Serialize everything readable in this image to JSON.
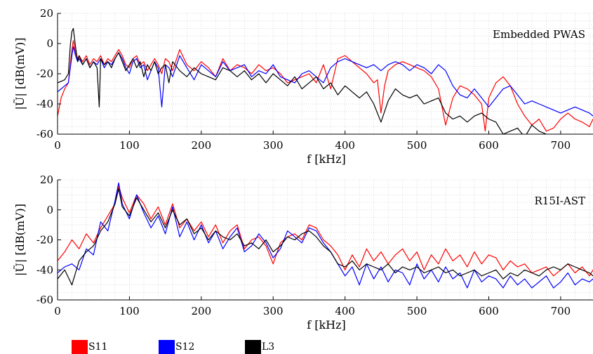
{
  "chart_data": [
    {
      "type": "line",
      "annotation": "Embedded PWAS",
      "xlabel": "f [kHz]",
      "ylabel": "|Ũ| [dB(mV)]",
      "xlim": [
        0,
        745
      ],
      "ylim": [
        -60,
        20
      ],
      "xticks": [
        0,
        100,
        200,
        300,
        400,
        500,
        600,
        700
      ],
      "yticks": [
        20,
        0,
        -20,
        -40,
        -60
      ],
      "grid": "dotted",
      "series": [
        {
          "name": "S11",
          "color": "#ff0000",
          "x": [
            0,
            5,
            10,
            15,
            20,
            22,
            25,
            28,
            30,
            35,
            40,
            45,
            50,
            55,
            60,
            65,
            70,
            75,
            80,
            85,
            90,
            95,
            100,
            105,
            110,
            115,
            120,
            125,
            130,
            135,
            140,
            145,
            150,
            155,
            160,
            170,
            180,
            190,
            200,
            210,
            220,
            230,
            240,
            250,
            260,
            270,
            280,
            290,
            300,
            310,
            320,
            330,
            340,
            350,
            360,
            370,
            380,
            390,
            400,
            410,
            420,
            430,
            440,
            445,
            450,
            455,
            460,
            470,
            480,
            490,
            500,
            510,
            520,
            530,
            540,
            550,
            560,
            570,
            580,
            590,
            595,
            600,
            610,
            620,
            630,
            640,
            650,
            660,
            670,
            680,
            690,
            700,
            710,
            720,
            730,
            740,
            745
          ],
          "y": [
            -48,
            -36,
            -30,
            -26,
            -4,
            2,
            -6,
            -10,
            -8,
            -12,
            -8,
            -14,
            -10,
            -12,
            -8,
            -14,
            -10,
            -12,
            -8,
            -4,
            -8,
            -14,
            -16,
            -10,
            -8,
            -14,
            -12,
            -18,
            -14,
            -10,
            -14,
            -20,
            -10,
            -12,
            -18,
            -4,
            -14,
            -18,
            -12,
            -16,
            -22,
            -10,
            -18,
            -14,
            -16,
            -20,
            -14,
            -18,
            -16,
            -20,
            -26,
            -24,
            -22,
            -20,
            -26,
            -14,
            -30,
            -10,
            -8,
            -12,
            -16,
            -20,
            -26,
            -24,
            -46,
            -28,
            -18,
            -14,
            -12,
            -14,
            -16,
            -18,
            -22,
            -30,
            -54,
            -36,
            -28,
            -30,
            -34,
            -40,
            -58,
            -36,
            -26,
            -22,
            -28,
            -40,
            -48,
            -54,
            -50,
            -58,
            -56,
            -50,
            -46,
            -50,
            -52,
            -55,
            -50
          ]
        },
        {
          "name": "S12",
          "color": "#0000ff",
          "x": [
            0,
            5,
            10,
            15,
            20,
            22,
            25,
            28,
            30,
            35,
            40,
            45,
            50,
            55,
            60,
            65,
            70,
            75,
            80,
            85,
            90,
            95,
            100,
            105,
            110,
            115,
            120,
            125,
            130,
            135,
            140,
            145,
            150,
            155,
            160,
            170,
            180,
            190,
            200,
            210,
            220,
            230,
            240,
            250,
            260,
            270,
            280,
            290,
            300,
            310,
            320,
            330,
            340,
            350,
            360,
            370,
            380,
            390,
            400,
            410,
            420,
            430,
            440,
            450,
            460,
            470,
            480,
            490,
            500,
            510,
            520,
            530,
            540,
            550,
            560,
            570,
            580,
            590,
            600,
            610,
            620,
            630,
            640,
            650,
            660,
            670,
            680,
            690,
            700,
            710,
            720,
            730,
            740,
            745
          ],
          "y": [
            -32,
            -30,
            -28,
            -26,
            -8,
            -2,
            -8,
            -12,
            -10,
            -14,
            -10,
            -16,
            -12,
            -14,
            -10,
            -16,
            -12,
            -14,
            -10,
            -6,
            -10,
            -16,
            -20,
            -12,
            -10,
            -16,
            -14,
            -24,
            -18,
            -12,
            -16,
            -42,
            -14,
            -16,
            -22,
            -8,
            -16,
            -24,
            -14,
            -18,
            -22,
            -12,
            -18,
            -16,
            -14,
            -22,
            -18,
            -20,
            -14,
            -22,
            -24,
            -26,
            -20,
            -18,
            -22,
            -26,
            -16,
            -12,
            -10,
            -12,
            -14,
            -16,
            -14,
            -18,
            -14,
            -12,
            -14,
            -18,
            -14,
            -16,
            -20,
            -14,
            -18,
            -28,
            -34,
            -36,
            -30,
            -36,
            -42,
            -36,
            -30,
            -28,
            -34,
            -40,
            -38,
            -40,
            -42,
            -44,
            -46,
            -44,
            -42,
            -44,
            -46,
            -48
          ]
        },
        {
          "name": "L3",
          "color": "#000000",
          "x": [
            0,
            5,
            10,
            15,
            18,
            20,
            22,
            25,
            28,
            30,
            35,
            40,
            45,
            50,
            55,
            58,
            60,
            65,
            70,
            75,
            80,
            85,
            90,
            95,
            100,
            105,
            110,
            115,
            120,
            125,
            130,
            135,
            140,
            145,
            150,
            155,
            160,
            170,
            180,
            190,
            200,
            210,
            220,
            230,
            240,
            250,
            260,
            270,
            280,
            290,
            300,
            310,
            320,
            330,
            340,
            350,
            360,
            370,
            380,
            390,
            400,
            410,
            420,
            430,
            440,
            450,
            460,
            470,
            480,
            490,
            500,
            510,
            520,
            530,
            540,
            550,
            560,
            570,
            580,
            590,
            600,
            610,
            620,
            630,
            640,
            650,
            660,
            670,
            680,
            690,
            700,
            710,
            720,
            730,
            740,
            745
          ],
          "y": [
            -26,
            -25,
            -24,
            -20,
            0,
            8,
            10,
            -2,
            -12,
            -8,
            -14,
            -10,
            -16,
            -12,
            -16,
            -42,
            -10,
            -14,
            -12,
            -16,
            -10,
            -6,
            -12,
            -18,
            -14,
            -10,
            -16,
            -12,
            -22,
            -14,
            -18,
            -12,
            -20,
            -16,
            -14,
            -26,
            -12,
            -18,
            -22,
            -16,
            -20,
            -22,
            -24,
            -16,
            -18,
            -22,
            -18,
            -24,
            -20,
            -26,
            -20,
            -24,
            -28,
            -22,
            -30,
            -26,
            -22,
            -30,
            -26,
            -34,
            -28,
            -32,
            -36,
            -32,
            -40,
            -52,
            -38,
            -30,
            -34,
            -36,
            -34,
            -40,
            -38,
            -36,
            -46,
            -50,
            -48,
            -52,
            -48,
            -46,
            -50,
            -52,
            -60,
            -58,
            -56,
            -62,
            -54,
            -58,
            -60,
            -62,
            -64,
            -60,
            -64,
            -62,
            -66,
            -64
          ]
        }
      ]
    },
    {
      "type": "line",
      "annotation": "R15I-AST",
      "xlabel": "f [kHz]",
      "ylabel": "|Ũ| [dB(mV)]",
      "xlim": [
        0,
        745
      ],
      "ylim": [
        -60,
        20
      ],
      "xticks": [
        0,
        100,
        200,
        300,
        400,
        500,
        600,
        700
      ],
      "yticks": [
        20,
        0,
        -20,
        -40,
        -60
      ],
      "grid": "dotted",
      "series": [
        {
          "name": "S11",
          "color": "#ff0000",
          "x": [
            0,
            10,
            20,
            30,
            40,
            50,
            60,
            70,
            80,
            85,
            90,
            100,
            110,
            120,
            130,
            140,
            150,
            160,
            170,
            180,
            190,
            200,
            210,
            220,
            230,
            240,
            250,
            260,
            270,
            280,
            290,
            300,
            310,
            320,
            330,
            340,
            350,
            360,
            370,
            380,
            390,
            400,
            410,
            420,
            430,
            440,
            450,
            460,
            470,
            480,
            490,
            500,
            510,
            520,
            530,
            540,
            550,
            560,
            570,
            580,
            590,
            600,
            610,
            620,
            630,
            640,
            650,
            660,
            670,
            680,
            690,
            700,
            710,
            720,
            730,
            740,
            745
          ],
          "y": [
            -34,
            -28,
            -20,
            -26,
            -16,
            -22,
            -12,
            -4,
            4,
            16,
            8,
            -2,
            10,
            4,
            -6,
            2,
            -10,
            4,
            -12,
            -6,
            -14,
            -8,
            -18,
            -10,
            -22,
            -14,
            -10,
            -26,
            -20,
            -18,
            -24,
            -36,
            -22,
            -18,
            -16,
            -20,
            -10,
            -12,
            -20,
            -24,
            -30,
            -40,
            -30,
            -38,
            -26,
            -34,
            -28,
            -36,
            -30,
            -26,
            -34,
            -28,
            -40,
            -30,
            -36,
            -26,
            -34,
            -30,
            -38,
            -28,
            -36,
            -30,
            -32,
            -40,
            -34,
            -38,
            -36,
            -42,
            -40,
            -38,
            -44,
            -40,
            -36,
            -42,
            -38,
            -44,
            -40
          ]
        },
        {
          "name": "S12",
          "color": "#0000ff",
          "x": [
            0,
            10,
            20,
            30,
            40,
            50,
            60,
            70,
            80,
            85,
            90,
            100,
            110,
            120,
            130,
            140,
            150,
            160,
            170,
            180,
            190,
            200,
            210,
            220,
            230,
            240,
            250,
            260,
            270,
            280,
            290,
            300,
            310,
            320,
            330,
            340,
            350,
            360,
            370,
            380,
            390,
            400,
            410,
            420,
            430,
            440,
            450,
            460,
            470,
            480,
            490,
            500,
            510,
            520,
            530,
            540,
            550,
            560,
            570,
            580,
            590,
            600,
            610,
            620,
            630,
            640,
            650,
            660,
            670,
            680,
            690,
            700,
            710,
            720,
            730,
            740,
            745
          ],
          "y": [
            -42,
            -38,
            -36,
            -40,
            -26,
            -30,
            -8,
            -14,
            6,
            18,
            4,
            -6,
            10,
            -2,
            -12,
            -4,
            -16,
            2,
            -18,
            -8,
            -20,
            -10,
            -22,
            -14,
            -26,
            -18,
            -12,
            -28,
            -24,
            -16,
            -22,
            -32,
            -26,
            -14,
            -18,
            -22,
            -12,
            -14,
            -22,
            -28,
            -36,
            -44,
            -38,
            -50,
            -36,
            -46,
            -38,
            -48,
            -40,
            -42,
            -50,
            -36,
            -46,
            -40,
            -48,
            -38,
            -46,
            -42,
            -52,
            -40,
            -48,
            -44,
            -46,
            -52,
            -44,
            -50,
            -46,
            -52,
            -48,
            -44,
            -52,
            -48,
            -42,
            -50,
            -46,
            -48,
            -46
          ]
        },
        {
          "name": "L3",
          "color": "#000000",
          "x": [
            0,
            10,
            20,
            30,
            40,
            50,
            60,
            70,
            80,
            85,
            90,
            100,
            110,
            120,
            130,
            140,
            150,
            160,
            170,
            180,
            190,
            200,
            210,
            220,
            230,
            240,
            250,
            260,
            270,
            280,
            290,
            300,
            310,
            320,
            330,
            340,
            350,
            360,
            370,
            380,
            390,
            400,
            410,
            420,
            430,
            440,
            450,
            460,
            470,
            480,
            490,
            500,
            510,
            520,
            530,
            540,
            550,
            560,
            570,
            580,
            590,
            600,
            610,
            620,
            630,
            640,
            650,
            660,
            670,
            680,
            690,
            700,
            710,
            720,
            730,
            740,
            745
          ],
          "y": [
            -46,
            -40,
            -50,
            -34,
            -28,
            -24,
            -14,
            -8,
            4,
            14,
            2,
            -4,
            8,
            0,
            -8,
            -2,
            -12,
            0,
            -10,
            -6,
            -16,
            -12,
            -20,
            -14,
            -18,
            -20,
            -16,
            -24,
            -22,
            -26,
            -20,
            -28,
            -24,
            -18,
            -20,
            -16,
            -14,
            -18,
            -24,
            -28,
            -36,
            -38,
            -34,
            -40,
            -36,
            -38,
            -40,
            -36,
            -42,
            -38,
            -40,
            -38,
            -42,
            -40,
            -38,
            -42,
            -40,
            -44,
            -42,
            -40,
            -44,
            -42,
            -40,
            -46,
            -42,
            -44,
            -40,
            -42,
            -44,
            -40,
            -38,
            -40,
            -36,
            -38,
            -40,
            -42,
            -44
          ]
        }
      ]
    }
  ],
  "legend": {
    "items": [
      {
        "label": "S11",
        "color": "#ff0000"
      },
      {
        "label": "S12",
        "color": "#0000ff"
      },
      {
        "label": "L3",
        "color": "#000000"
      }
    ]
  }
}
